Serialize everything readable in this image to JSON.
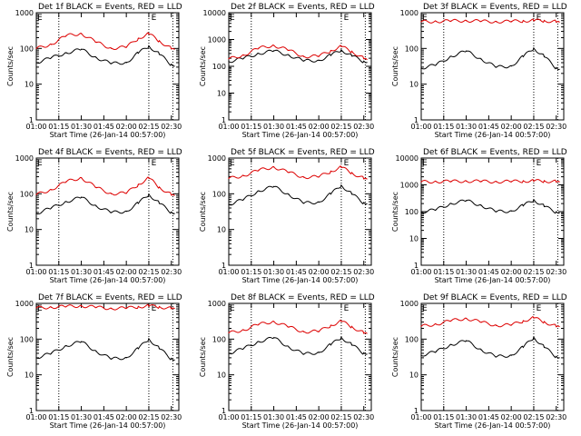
{
  "chart_data": [
    {
      "type": "line",
      "title": "Det 1f BLACK = Events, RED = LLD",
      "xlabel": "Start Time (26-Jan-14 00:57:00)",
      "ylabel": "Counts/sec",
      "flare_marker": "E",
      "x_ticks": [
        "01:00",
        "01:15",
        "01:30",
        "01:45",
        "02:00",
        "02:15",
        "02:30"
      ],
      "y_ticks": [
        "1",
        "10",
        "100",
        "1000"
      ],
      "ylim": [
        1,
        1000
      ],
      "xlim": [
        "01:00",
        "02:35"
      ],
      "series": [
        {
          "color": "#000000",
          "x": [
            "01:00",
            "01:10",
            "01:20",
            "01:30",
            "01:40",
            "01:50",
            "02:00",
            "02:08",
            "02:15",
            "02:22",
            "02:30",
            "02:32"
          ],
          "values": [
            40,
            55,
            75,
            95,
            55,
            38,
            40,
            75,
            115,
            70,
            35,
            32
          ]
        },
        {
          "color": "#dd0000",
          "x": [
            "01:00",
            "01:10",
            "01:20",
            "01:30",
            "01:40",
            "01:50",
            "02:00",
            "02:08",
            "02:15",
            "02:22",
            "02:30",
            "02:32"
          ],
          "values": [
            100,
            130,
            230,
            260,
            150,
            100,
            110,
            190,
            260,
            160,
            100,
            95
          ]
        }
      ]
    },
    {
      "type": "line",
      "title": "Det 2f BLACK = Events, RED = LLD",
      "xlabel": "Start Time (26-Jan-14 00:57:00)",
      "ylabel": "Counts/sec",
      "flare_marker": "E",
      "x_ticks": [
        "01:00",
        "01:15",
        "01:30",
        "01:45",
        "02:00",
        "02:15",
        "02:30"
      ],
      "y_ticks": [
        "1",
        "10",
        "100",
        "1000",
        "10000"
      ],
      "ylim": [
        1,
        10000
      ],
      "xlim": [
        "01:00",
        "02:35"
      ],
      "series": [
        {
          "color": "#000000",
          "x": [
            "01:00",
            "01:10",
            "01:20",
            "01:30",
            "01:40",
            "01:50",
            "02:00",
            "02:08",
            "02:15",
            "02:22",
            "02:30",
            "02:32"
          ],
          "values": [
            150,
            200,
            300,
            380,
            260,
            160,
            165,
            260,
            400,
            250,
            150,
            140
          ]
        },
        {
          "color": "#dd0000",
          "x": [
            "01:00",
            "01:10",
            "01:20",
            "01:30",
            "01:40",
            "01:50",
            "02:00",
            "02:08",
            "02:15",
            "02:22",
            "02:30",
            "02:32"
          ],
          "values": [
            190,
            260,
            480,
            600,
            400,
            230,
            240,
            380,
            560,
            350,
            200,
            180
          ]
        }
      ]
    },
    {
      "type": "line",
      "title": "Det 3f BLACK = Events, RED = LLD",
      "xlabel": "Start Time (26-Jan-14 00:57:00)",
      "ylabel": "Counts/sec",
      "flare_marker": "E",
      "x_ticks": [
        "01:00",
        "01:15",
        "01:30",
        "01:45",
        "02:00",
        "02:15",
        "02:30"
      ],
      "y_ticks": [
        "1",
        "10",
        "100",
        "1000"
      ],
      "ylim": [
        1,
        1000
      ],
      "xlim": [
        "01:00",
        "02:35"
      ],
      "series": [
        {
          "color": "#000000",
          "x": [
            "01:00",
            "01:10",
            "01:20",
            "01:30",
            "01:40",
            "01:50",
            "02:00",
            "02:08",
            "02:15",
            "02:22",
            "02:30",
            "02:32"
          ],
          "values": [
            28,
            35,
            60,
            85,
            50,
            30,
            32,
            60,
            100,
            60,
            28,
            26
          ]
        },
        {
          "color": "#dd0000",
          "x": [
            "01:00",
            "01:10",
            "01:20",
            "01:30",
            "01:40",
            "01:50",
            "02:00",
            "02:08",
            "02:15",
            "02:22",
            "02:30",
            "02:32"
          ],
          "values": [
            560,
            570,
            590,
            600,
            580,
            560,
            570,
            590,
            610,
            590,
            560,
            550
          ]
        }
      ]
    },
    {
      "type": "line",
      "title": "Det 4f BLACK = Events, RED = LLD",
      "xlabel": "Start Time (26-Jan-14 00:57:00)",
      "ylabel": "Counts/sec",
      "flare_marker": "E",
      "x_ticks": [
        "01:00",
        "01:15",
        "01:30",
        "01:45",
        "02:00",
        "02:15",
        "02:30"
      ],
      "y_ticks": [
        "1",
        "10",
        "100",
        "1000"
      ],
      "ylim": [
        1,
        1000
      ],
      "xlim": [
        "01:00",
        "02:35"
      ],
      "series": [
        {
          "color": "#000000",
          "x": [
            "01:00",
            "01:10",
            "01:20",
            "01:30",
            "01:40",
            "01:50",
            "02:00",
            "02:08",
            "02:15",
            "02:22",
            "02:30",
            "02:32"
          ],
          "values": [
            28,
            40,
            60,
            80,
            45,
            30,
            32,
            55,
            95,
            55,
            30,
            28
          ]
        },
        {
          "color": "#dd0000",
          "x": [
            "01:00",
            "01:10",
            "01:20",
            "01:30",
            "01:40",
            "01:50",
            "02:00",
            "02:08",
            "02:15",
            "02:22",
            "02:30",
            "02:32"
          ],
          "values": [
            95,
            130,
            220,
            280,
            150,
            100,
            105,
            180,
            280,
            150,
            95,
            90
          ]
        }
      ]
    },
    {
      "type": "line",
      "title": "Det 5f BLACK = Events, RED = LLD",
      "xlabel": "Start Time (26-Jan-14 00:57:00)",
      "ylabel": "Counts/sec",
      "flare_marker": "E",
      "x_ticks": [
        "01:00",
        "01:15",
        "01:30",
        "01:45",
        "02:00",
        "02:15",
        "02:30"
      ],
      "y_ticks": [
        "1",
        "10",
        "100",
        "1000"
      ],
      "ylim": [
        1,
        1000
      ],
      "xlim": [
        "01:00",
        "02:35"
      ],
      "series": [
        {
          "color": "#000000",
          "x": [
            "01:00",
            "01:10",
            "01:20",
            "01:30",
            "01:40",
            "01:50",
            "02:00",
            "02:08",
            "02:15",
            "02:22",
            "02:30",
            "02:32"
          ],
          "values": [
            50,
            70,
            120,
            160,
            95,
            55,
            58,
            100,
            170,
            100,
            55,
            52
          ]
        },
        {
          "color": "#dd0000",
          "x": [
            "01:00",
            "01:10",
            "01:20",
            "01:30",
            "01:40",
            "01:50",
            "02:00",
            "02:08",
            "02:15",
            "02:22",
            "02:30",
            "02:32"
          ],
          "values": [
            270,
            320,
            460,
            560,
            400,
            290,
            300,
            420,
            560,
            380,
            270,
            260
          ]
        }
      ]
    },
    {
      "type": "line",
      "title": "Det 6f BLACK = Events, RED = LLD",
      "xlabel": "Start Time (26-Jan-14 00:57:00)",
      "ylabel": "Counts/sec",
      "flare_marker": "E",
      "x_ticks": [
        "01:00",
        "01:15",
        "01:30",
        "01:45",
        "02:00",
        "02:15",
        "02:30"
      ],
      "y_ticks": [
        "1",
        "10",
        "100",
        "1000",
        "10000"
      ],
      "ylim": [
        1,
        10000
      ],
      "xlim": [
        "01:00",
        "02:35"
      ],
      "series": [
        {
          "color": "#000000",
          "x": [
            "01:00",
            "01:10",
            "01:20",
            "01:30",
            "01:40",
            "01:50",
            "02:00",
            "02:08",
            "02:15",
            "02:22",
            "02:30",
            "02:32"
          ],
          "values": [
            95,
            120,
            200,
            260,
            170,
            100,
            105,
            170,
            270,
            160,
            95,
            90
          ]
        },
        {
          "color": "#dd0000",
          "x": [
            "01:00",
            "01:10",
            "01:20",
            "01:30",
            "01:40",
            "01:50",
            "02:00",
            "02:08",
            "02:15",
            "02:22",
            "02:30",
            "02:32"
          ],
          "values": [
            1300,
            1320,
            1350,
            1380,
            1350,
            1310,
            1330,
            1380,
            1420,
            1370,
            1320,
            1300
          ]
        }
      ]
    },
    {
      "type": "line",
      "title": "Det 7f BLACK = Events, RED = LLD",
      "xlabel": "Start Time (26-Jan-14 00:57:00)",
      "ylabel": "Counts/sec",
      "flare_marker": "E",
      "x_ticks": [
        "01:00",
        "01:15",
        "01:30",
        "01:45",
        "02:00",
        "02:15",
        "02:30"
      ],
      "y_ticks": [
        "1",
        "10",
        "100",
        "1000"
      ],
      "ylim": [
        1,
        1000
      ],
      "xlim": [
        "01:00",
        "02:35"
      ],
      "series": [
        {
          "color": "#000000",
          "x": [
            "01:00",
            "01:10",
            "01:20",
            "01:30",
            "01:40",
            "01:50",
            "02:00",
            "02:08",
            "02:15",
            "02:22",
            "02:30",
            "02:32"
          ],
          "values": [
            30,
            40,
            65,
            85,
            45,
            28,
            30,
            55,
            100,
            55,
            28,
            26
          ]
        },
        {
          "color": "#dd0000",
          "x": [
            "01:00",
            "01:10",
            "01:20",
            "01:30",
            "01:40",
            "01:50",
            "02:00",
            "02:08",
            "02:15",
            "02:22",
            "02:30",
            "02:32"
          ],
          "values": [
            750,
            780,
            820,
            850,
            780,
            720,
            740,
            800,
            860,
            790,
            730,
            720
          ]
        }
      ]
    },
    {
      "type": "line",
      "title": "Det 8f BLACK = Events, RED = LLD",
      "xlabel": "Start Time (26-Jan-14 00:57:00)",
      "ylabel": "Counts/sec",
      "flare_marker": "E",
      "x_ticks": [
        "01:00",
        "01:15",
        "01:30",
        "01:45",
        "02:00",
        "02:15",
        "02:30"
      ],
      "y_ticks": [
        "1",
        "10",
        "100",
        "1000"
      ],
      "ylim": [
        1,
        1000
      ],
      "xlim": [
        "01:00",
        "02:35"
      ],
      "series": [
        {
          "color": "#000000",
          "x": [
            "01:00",
            "01:10",
            "01:20",
            "01:30",
            "01:40",
            "01:50",
            "02:00",
            "02:08",
            "02:15",
            "02:22",
            "02:30",
            "02:32"
          ],
          "values": [
            40,
            55,
            85,
            110,
            60,
            38,
            42,
            70,
            110,
            70,
            40,
            38
          ]
        },
        {
          "color": "#dd0000",
          "x": [
            "01:00",
            "01:10",
            "01:20",
            "01:30",
            "01:40",
            "01:50",
            "02:00",
            "02:08",
            "02:15",
            "02:22",
            "02:30",
            "02:32"
          ],
          "values": [
            150,
            180,
            260,
            310,
            220,
            160,
            165,
            240,
            320,
            220,
            150,
            145
          ]
        }
      ]
    },
    {
      "type": "line",
      "title": "Det 9f BLACK = Events, RED = LLD",
      "xlabel": "Start Time (26-Jan-14 00:57:00)",
      "ylabel": "Counts/sec",
      "flare_marker": "E",
      "x_ticks": [
        "01:00",
        "01:15",
        "01:30",
        "01:45",
        "02:00",
        "02:15",
        "02:30"
      ],
      "y_ticks": [
        "1",
        "10",
        "100",
        "1000"
      ],
      "ylim": [
        1,
        1000
      ],
      "xlim": [
        "01:00",
        "02:35"
      ],
      "series": [
        {
          "color": "#000000",
          "x": [
            "01:00",
            "01:10",
            "01:20",
            "01:30",
            "01:40",
            "01:50",
            "02:00",
            "02:08",
            "02:15",
            "02:22",
            "02:30",
            "02:32"
          ],
          "values": [
            35,
            45,
            70,
            90,
            50,
            32,
            35,
            60,
            110,
            60,
            32,
            30
          ]
        },
        {
          "color": "#dd0000",
          "x": [
            "01:00",
            "01:10",
            "01:20",
            "01:30",
            "01:40",
            "01:50",
            "02:00",
            "02:08",
            "02:15",
            "02:22",
            "02:30",
            "02:32"
          ],
          "values": [
            230,
            260,
            330,
            380,
            300,
            240,
            250,
            320,
            400,
            300,
            230,
            225
          ]
        }
      ]
    }
  ]
}
